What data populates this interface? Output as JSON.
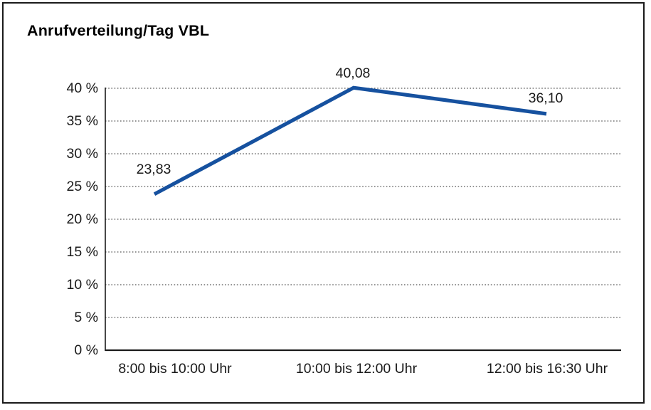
{
  "title": "Anrufverteilung/Tag VBL",
  "chart_data": {
    "type": "line",
    "title": "Anrufverteilung/Tag VBL",
    "categories": [
      "8:00 bis 10:00 Uhr",
      "10:00 bis 12:00 Uhr",
      "12:00 bis 16:30 Uhr"
    ],
    "values": [
      23.83,
      40.08,
      36.1
    ],
    "data_labels": [
      "23,83",
      "40,08",
      "36,10"
    ],
    "y_tick_labels": [
      "0 %",
      "5 %",
      "10 %",
      "15 %",
      "20 %",
      "25 %",
      "30 %",
      "35 %",
      "40 %"
    ],
    "ylim": [
      0,
      40
    ],
    "y_step": 5,
    "xlabel": "",
    "ylabel": "",
    "grid": "horizontal-dotted",
    "legend": "none",
    "line_color": "#16519F",
    "axis_color": "#1a1a1a",
    "grid_color": "#555555"
  }
}
